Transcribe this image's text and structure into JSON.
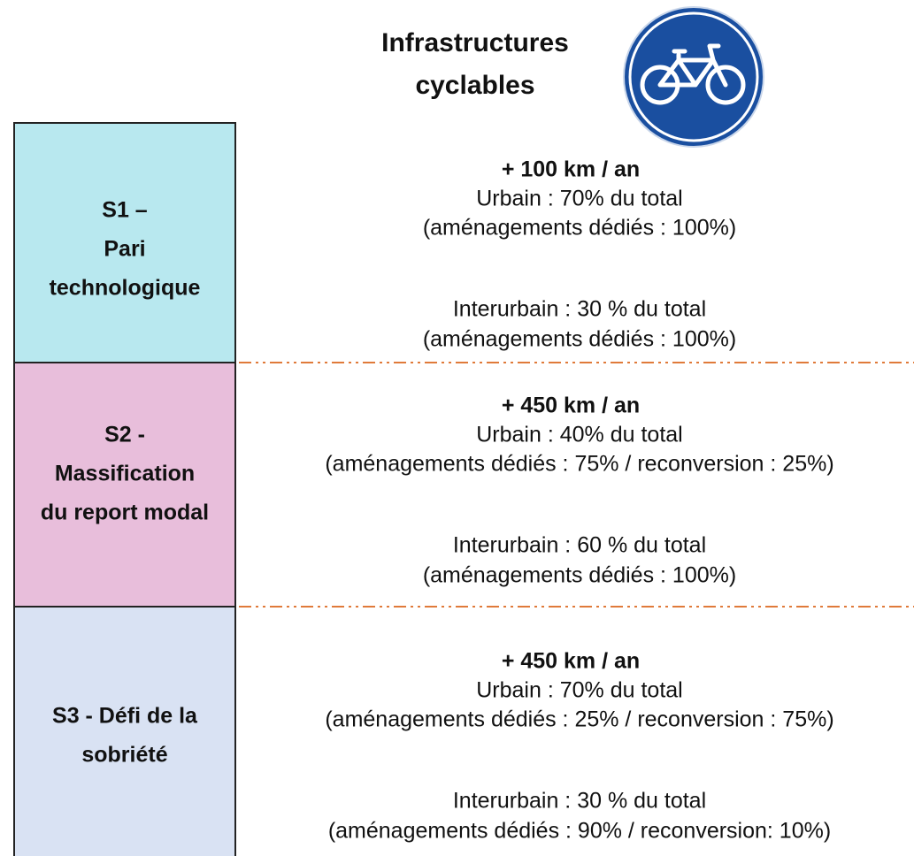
{
  "title": [
    "Infrastructures",
    "cyclables"
  ],
  "scenarios": [
    {
      "label": [
        "S1 –",
        "Pari",
        "technologique"
      ],
      "headline": "+ 100 km / an",
      "lines": [
        "Urbain : 70% du total",
        "(aménagements dédiés : 100%)",
        "Interurbain : 30 % du total",
        "(aménagements dédiés : 100%)"
      ]
    },
    {
      "label": [
        "S2 -",
        "Massification",
        "du report modal"
      ],
      "headline": "+ 450 km / an",
      "lines": [
        "Urbain : 40% du total",
        "(aménagements dédiés : 75% / reconversion : 25%)",
        "Interurbain : 60 % du total",
        "(aménagements dédiés : 100%)"
      ]
    },
    {
      "label": [
        "S3 - Défi de la",
        "sobriété"
      ],
      "headline": "+ 450 km / an",
      "lines": [
        "Urbain : 70% du total",
        "(aménagements dédiés : 25% / reconversion : 75%)",
        "Interurbain : 30 % du total",
        "(aménagements dédiés : 90% / reconversion: 10%)"
      ]
    }
  ]
}
